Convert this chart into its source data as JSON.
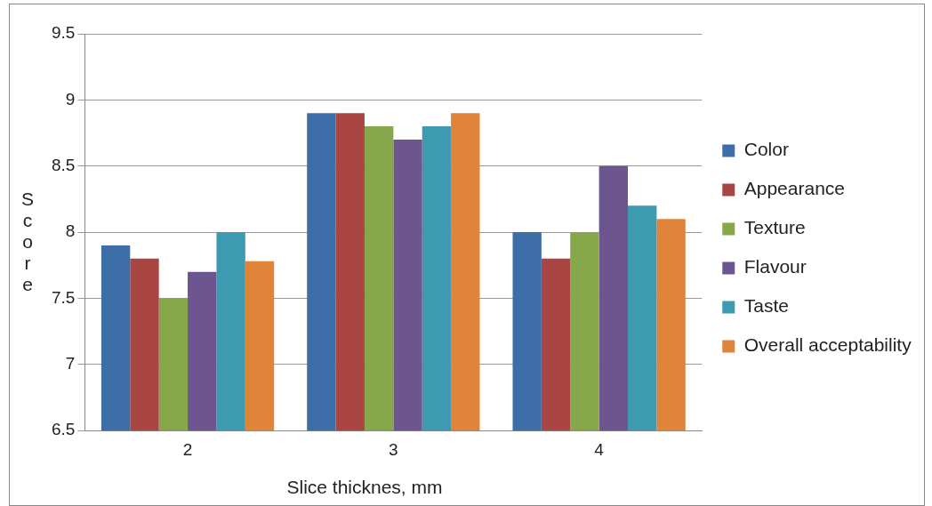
{
  "chart_data": {
    "type": "bar",
    "xlabel": "Slice thicknes, mm",
    "ylabel": "Score",
    "categories": [
      "2",
      "3",
      "4"
    ],
    "series": [
      {
        "name": "Color",
        "color": "#3e6ea8",
        "values": [
          7.9,
          8.9,
          8.0
        ]
      },
      {
        "name": "Appearance",
        "color": "#a94542",
        "values": [
          7.8,
          8.9,
          7.8
        ]
      },
      {
        "name": "Texture",
        "color": "#86a74a",
        "values": [
          7.5,
          8.8,
          8.0
        ]
      },
      {
        "name": "Flavour",
        "color": "#6d5590",
        "values": [
          7.7,
          8.7,
          8.5
        ]
      },
      {
        "name": "Taste",
        "color": "#3d9ab0",
        "values": [
          8.0,
          8.8,
          8.2
        ]
      },
      {
        "name": "Overall acceptability",
        "color": "#e0843a",
        "values": [
          7.78,
          8.9,
          8.1
        ]
      }
    ],
    "ylim": [
      6.5,
      9.5
    ],
    "yticks": [
      6.5,
      7,
      7.5,
      8,
      8.5,
      9,
      9.5
    ],
    "grid": "y",
    "legend": "right"
  }
}
